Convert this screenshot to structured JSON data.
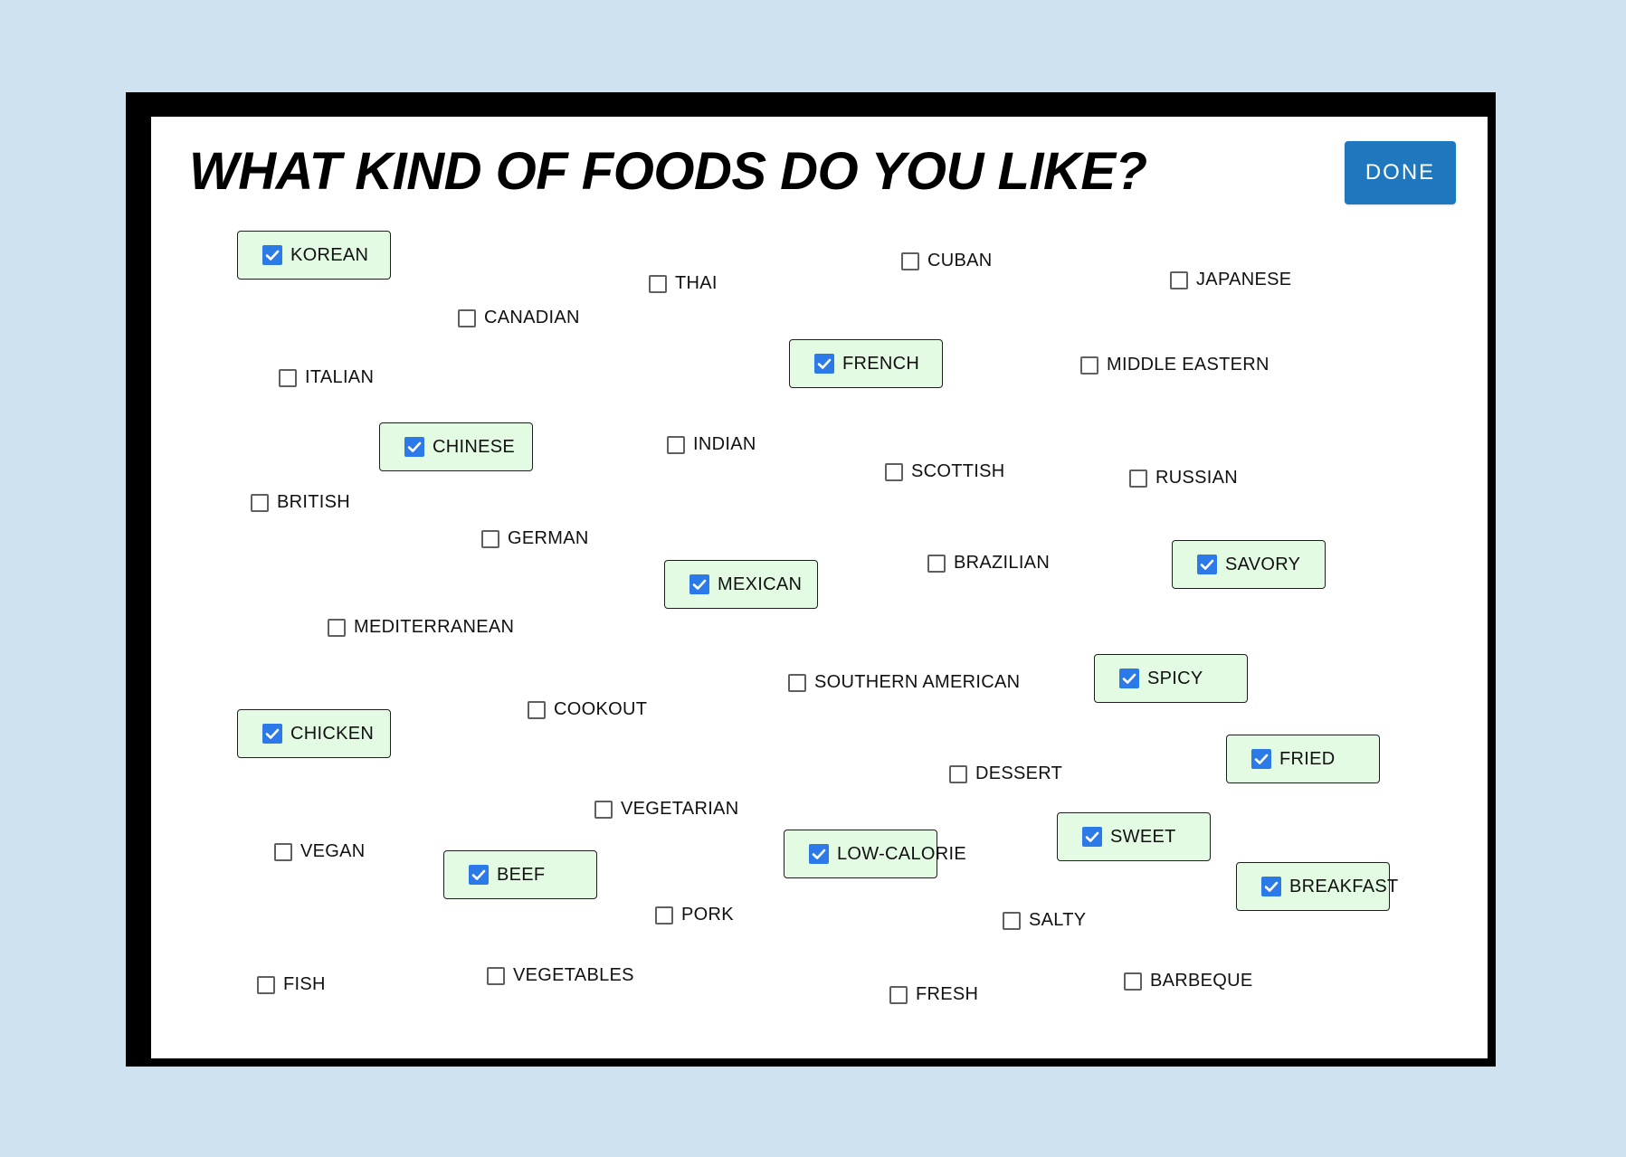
{
  "title": "WHAT KIND OF FOODS DO YOU LIKE?",
  "done_label": "DONE",
  "colors": {
    "background": "#cfe2f0",
    "frame": "#000000",
    "panel": "#ffffff",
    "done_button": "#1f77bd",
    "selected_chip": "#e2fbe2",
    "checkbox_checked": "#2b7ae8"
  },
  "options": [
    {
      "label": "KOREAN",
      "checked": true
    },
    {
      "label": "THAI",
      "checked": false
    },
    {
      "label": "CUBAN",
      "checked": false
    },
    {
      "label": "JAPANESE",
      "checked": false
    },
    {
      "label": "CANADIAN",
      "checked": false
    },
    {
      "label": "FRENCH",
      "checked": true
    },
    {
      "label": "MIDDLE EASTERN",
      "checked": false
    },
    {
      "label": "ITALIAN",
      "checked": false
    },
    {
      "label": "CHINESE",
      "checked": true
    },
    {
      "label": "INDIAN",
      "checked": false
    },
    {
      "label": "SCOTTISH",
      "checked": false
    },
    {
      "label": "RUSSIAN",
      "checked": false
    },
    {
      "label": "BRITISH",
      "checked": false
    },
    {
      "label": "GERMAN",
      "checked": false
    },
    {
      "label": "MEXICAN",
      "checked": true
    },
    {
      "label": "BRAZILIAN",
      "checked": false
    },
    {
      "label": "SAVORY",
      "checked": true
    },
    {
      "label": "MEDITERRANEAN",
      "checked": false
    },
    {
      "label": "SOUTHERN AMERICAN",
      "checked": false
    },
    {
      "label": "SPICY",
      "checked": true
    },
    {
      "label": "COOKOUT",
      "checked": false
    },
    {
      "label": "CHICKEN",
      "checked": true
    },
    {
      "label": "FRIED",
      "checked": true
    },
    {
      "label": "DESSERT",
      "checked": false
    },
    {
      "label": "VEGETARIAN",
      "checked": false
    },
    {
      "label": "SWEET",
      "checked": true
    },
    {
      "label": "VEGAN",
      "checked": false
    },
    {
      "label": "BEEF",
      "checked": true
    },
    {
      "label": "LOW-CALORIE",
      "checked": true
    },
    {
      "label": "BREAKFAST",
      "checked": true
    },
    {
      "label": "PORK",
      "checked": false
    },
    {
      "label": "SALTY",
      "checked": false
    },
    {
      "label": "FISH",
      "checked": false
    },
    {
      "label": "VEGETABLES",
      "checked": false
    },
    {
      "label": "FRESH",
      "checked": false
    },
    {
      "label": "BARBEQUE",
      "checked": false
    }
  ]
}
